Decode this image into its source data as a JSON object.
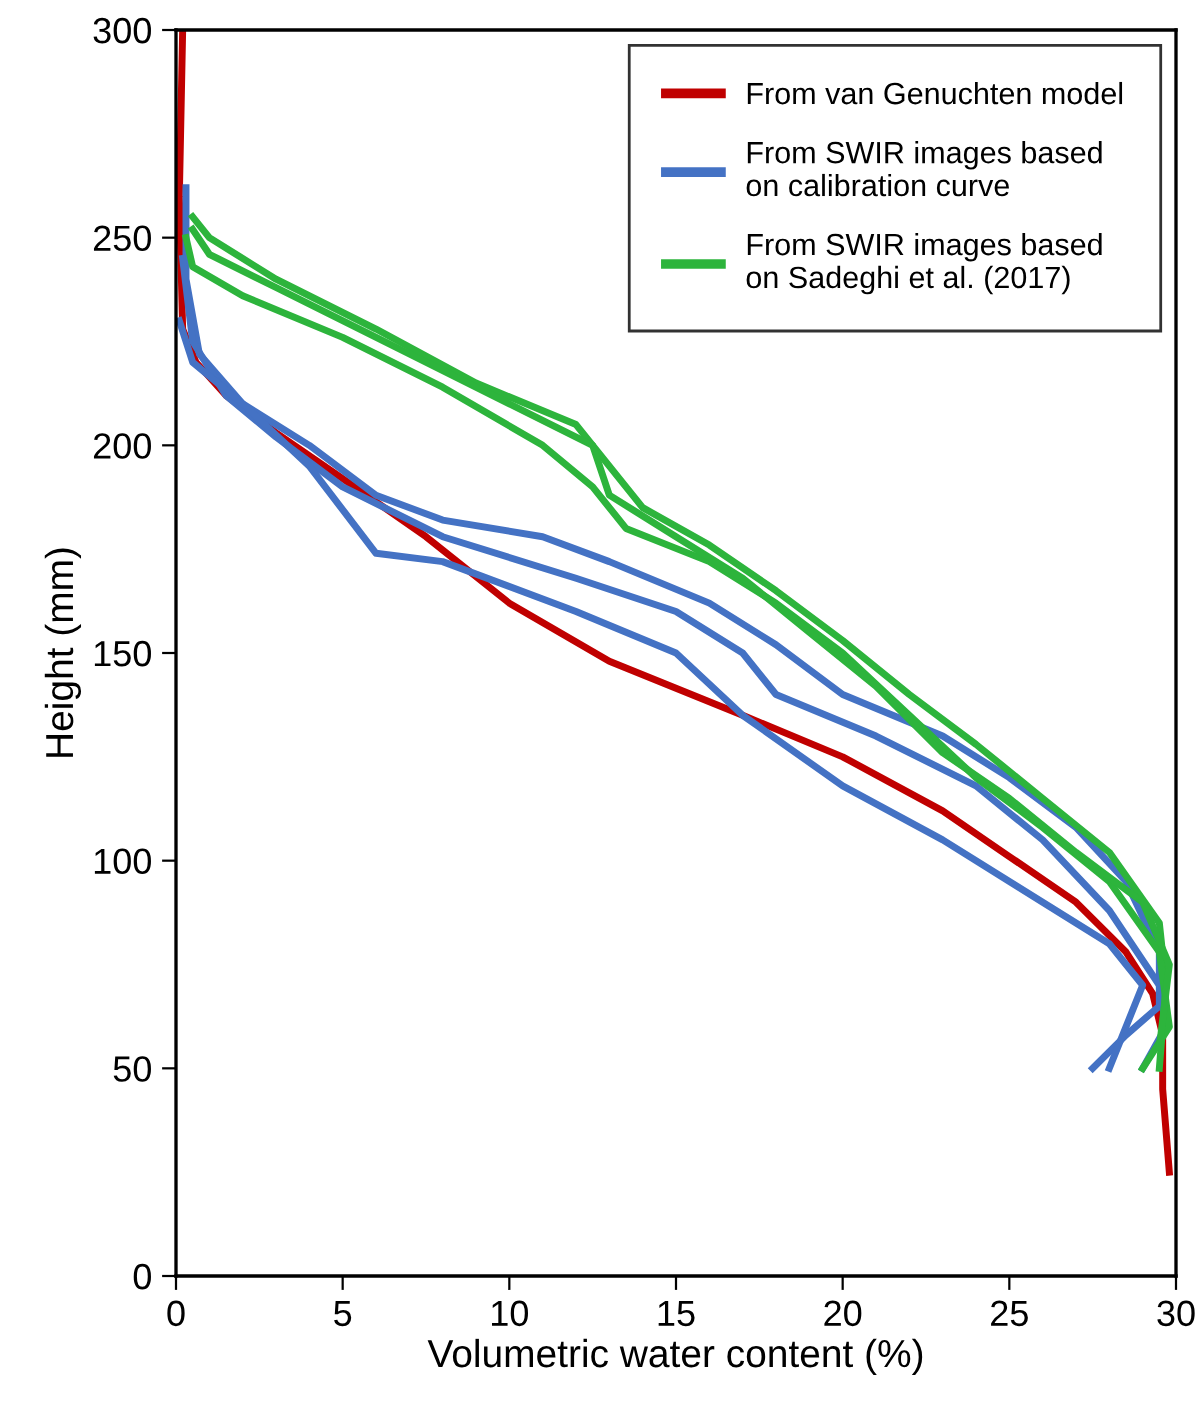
{
  "chart_data": {
    "type": "line",
    "xlabel": "Volumetric water content (%)",
    "ylabel": "Height (mm)",
    "xlim": [
      0,
      30
    ],
    "xticks": [
      0,
      5,
      10,
      15,
      20,
      25,
      30
    ],
    "ylim": [
      0,
      300
    ],
    "yticks": [
      0,
      50,
      100,
      150,
      200,
      250,
      300
    ],
    "grid": false,
    "legend": "top right",
    "line_style": "solid",
    "marker": "none",
    "series": [
      {
        "name": "From van Genuchten model",
        "color": "#c00000",
        "x": [
          0.2,
          0.1,
          0.2,
          0.6,
          1.5,
          3,
          5,
          7.5,
          10,
          13,
          17,
          20,
          23,
          25,
          27,
          28.5,
          29.3,
          29.6,
          29.6,
          29.8
        ],
        "values": [
          300,
          260,
          228,
          220,
          212,
          203,
          192,
          178,
          162,
          148,
          135,
          125,
          112,
          101,
          90,
          78,
          68,
          58,
          45,
          25
        ]
      },
      {
        "name": "From SWIR images based\non calibration curve",
        "color": "#4472c4",
        "x": [
          0.3,
          0.3,
          0.7,
          2,
          4,
          6,
          8,
          11,
          13,
          16,
          18,
          20,
          23,
          25,
          27,
          28.5,
          29.5,
          29.5,
          28.5,
          27.5
        ],
        "values": [
          262,
          240,
          222,
          210,
          200,
          188,
          182,
          178,
          172,
          162,
          152,
          140,
          130,
          120,
          108,
          95,
          78,
          65,
          58,
          50
        ]
      },
      {
        "color": "#4472c4",
        "x": [
          0.2,
          0.5,
          1.5,
          3,
          5,
          8,
          12,
          15,
          17,
          18,
          21,
          24,
          26,
          28,
          29.5,
          29.7,
          29
        ],
        "values": [
          245,
          225,
          212,
          202,
          190,
          178,
          168,
          160,
          150,
          140,
          130,
          118,
          105,
          88,
          70,
          60,
          50
        ]
      },
      {
        "color": "#4472c4",
        "x": [
          0.1,
          0.5,
          2,
          4,
          6,
          8,
          12,
          15,
          17,
          20,
          23,
          26,
          28,
          29,
          28
        ],
        "values": [
          230,
          220,
          210,
          195,
          174,
          172,
          160,
          150,
          135,
          118,
          105,
          90,
          80,
          70,
          50
        ]
      },
      {
        "name": "From SWIR images based\non Sadeghi et al. (2017)",
        "color": "#2db43c",
        "x": [
          0.5,
          1,
          3,
          6,
          9,
          12,
          13,
          14,
          16,
          18,
          20,
          22,
          24,
          26,
          28,
          29.5,
          29.7,
          29.5
        ],
        "values": [
          255,
          250,
          240,
          228,
          215,
          205,
          195,
          185,
          176,
          165,
          153,
          140,
          128,
          115,
          102,
          85,
          70,
          50
        ]
      },
      {
        "color": "#2db43c",
        "x": [
          0.3,
          0.5,
          2,
          5,
          8,
          11,
          12.5,
          13.5,
          16,
          18,
          20,
          22,
          24,
          26,
          28,
          29.5,
          29.8,
          29
        ],
        "values": [
          250,
          243,
          236,
          226,
          214,
          200,
          190,
          180,
          172,
          162,
          150,
          135,
          120,
          108,
          95,
          78,
          60,
          50
        ]
      },
      {
        "color": "#2db43c",
        "x": [
          0.5,
          1,
          3,
          7,
          10,
          12.5,
          13,
          15,
          17,
          19,
          21,
          23,
          25,
          27,
          29,
          29.8,
          29.5
        ],
        "values": [
          252,
          246,
          238,
          222,
          210,
          200,
          188,
          178,
          168,
          155,
          142,
          126,
          115,
          102,
          90,
          75,
          55
        ]
      }
    ]
  }
}
